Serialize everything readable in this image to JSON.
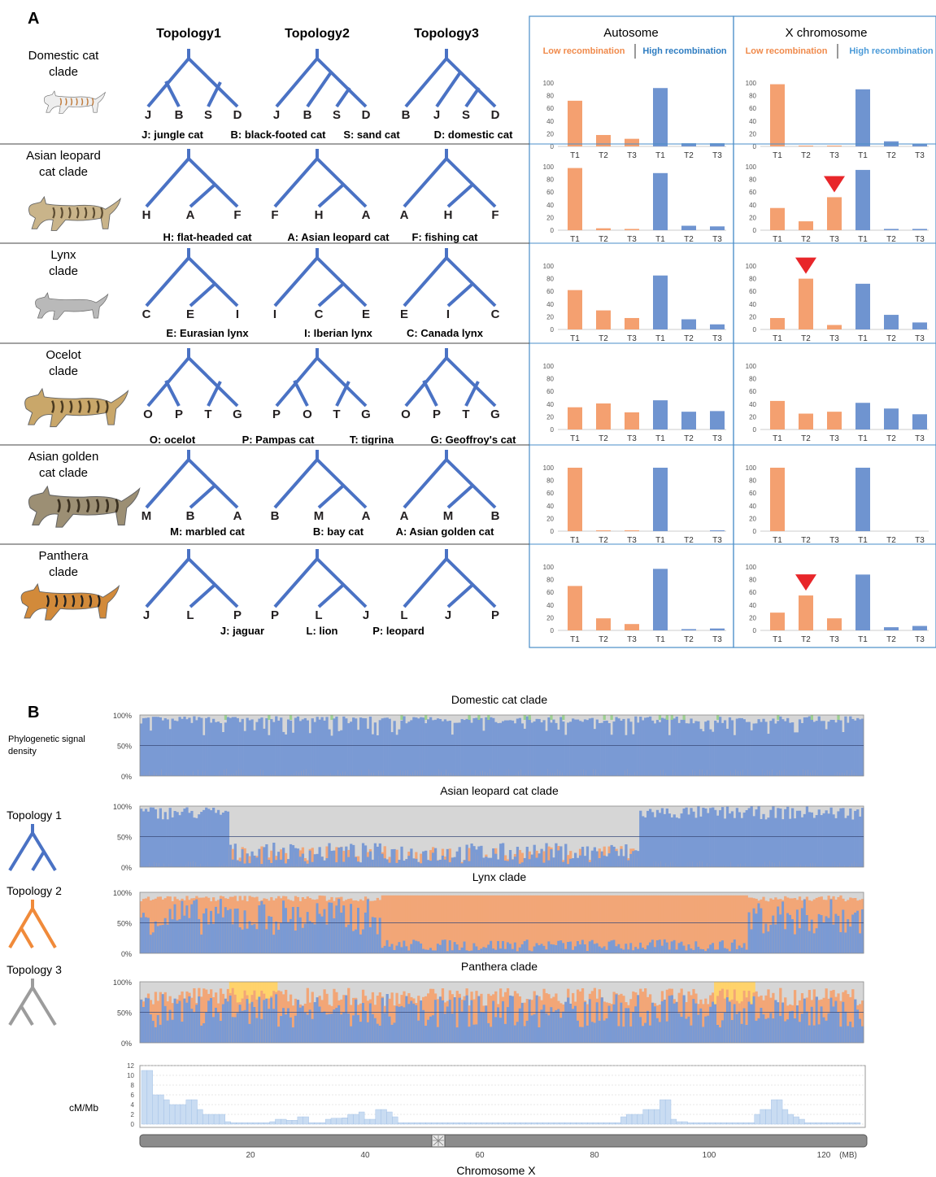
{
  "panelA": {
    "label": "A",
    "topology_headers": [
      "Topology1",
      "Topology2",
      "Topology3"
    ],
    "autosome_title": "Autosome",
    "x_title": "X chromosome",
    "low_label": "Low recombination",
    "high_label": "High recombination",
    "y_ticks": [
      "100",
      "80",
      "60",
      "40",
      "20",
      "0"
    ],
    "x_ticks": [
      "T1",
      "T2",
      "T3",
      "T1",
      "T2",
      "T3"
    ],
    "colors": {
      "low": "#f4a070",
      "high": "#6f94d0",
      "tree": "#4a72c4",
      "marker": "#e8262a",
      "frame": "#4a8ec9",
      "low_text": "#f08a4b",
      "high_text": "#2d7cc1"
    },
    "clades": [
      {
        "name_lines": [
          "Domestic cat",
          "clade"
        ],
        "leaves": [
          [
            "J",
            "B",
            "S",
            "D"
          ],
          [
            "J",
            "B",
            "S",
            "D"
          ],
          [
            "B",
            "J",
            "S",
            "D"
          ]
        ],
        "legend": [
          "J: jungle cat",
          "B: black-footed cat",
          "S: sand cat",
          "D: domestic cat"
        ],
        "auto": [
          72,
          18,
          12,
          92,
          5,
          5
        ],
        "xchr": [
          98,
          1,
          1,
          90,
          8,
          4
        ],
        "marker": null
      },
      {
        "name_lines": [
          "Asian leopard",
          "cat clade"
        ],
        "leaves": [
          [
            "H",
            "A",
            "F"
          ],
          [
            "F",
            "H",
            "A"
          ],
          [
            "A",
            "H",
            "F"
          ]
        ],
        "legend": [
          "H: flat-headed cat",
          "A: Asian leopard cat",
          "F: fishing cat"
        ],
        "auto": [
          98,
          3,
          2,
          90,
          7,
          6
        ],
        "xchr": [
          35,
          14,
          52,
          95,
          2,
          2
        ],
        "marker": 2
      },
      {
        "name_lines": [
          "Lynx",
          "clade"
        ],
        "leaves": [
          [
            "C",
            "E",
            "I"
          ],
          [
            "I",
            "C",
            "E"
          ],
          [
            "E",
            "I",
            "C"
          ]
        ],
        "legend": [
          "E: Eurasian lynx",
          "I: Iberian lynx",
          "C: Canada lynx"
        ],
        "auto": [
          62,
          30,
          18,
          85,
          16,
          8
        ],
        "xchr": [
          18,
          80,
          7,
          72,
          23,
          11
        ],
        "marker": 1
      },
      {
        "name_lines": [
          "Ocelot",
          "clade"
        ],
        "leaves": [
          [
            "O",
            "P",
            "T",
            "G"
          ],
          [
            "P",
            "O",
            "T",
            "G"
          ],
          [
            "O",
            "P",
            "T",
            "G"
          ]
        ],
        "legend": [
          "O: ocelot",
          "P: Pampas cat",
          "T: tigrina",
          "G: Geoffroy's cat"
        ],
        "auto": [
          35,
          41,
          27,
          46,
          28,
          29
        ],
        "xchr": [
          45,
          25,
          28,
          42,
          33,
          24
        ],
        "marker": null
      },
      {
        "name_lines": [
          "Asian golden",
          "cat clade"
        ],
        "leaves": [
          [
            "M",
            "B",
            "A"
          ],
          [
            "B",
            "M",
            "A"
          ],
          [
            "A",
            "M",
            "B"
          ]
        ],
        "legend": [
          "M: marbled cat",
          "B: bay cat",
          "A: Asian golden cat"
        ],
        "auto": [
          100,
          1,
          1,
          100,
          0,
          1
        ],
        "xchr": [
          100,
          0,
          0,
          100,
          0,
          0
        ],
        "marker": null
      },
      {
        "name_lines": [
          "Panthera",
          "clade"
        ],
        "leaves": [
          [
            "J",
            "L",
            "P"
          ],
          [
            "P",
            "L",
            "J"
          ],
          [
            "L",
            "J",
            "P"
          ]
        ],
        "legend": [
          "J: jaguar",
          "L: lion",
          "P: leopard"
        ],
        "auto": [
          70,
          19,
          10,
          97,
          2,
          3
        ],
        "xchr": [
          28,
          55,
          19,
          88,
          5,
          7
        ],
        "marker": 1
      }
    ]
  },
  "panelB": {
    "label": "B",
    "ylabel_lines": [
      "Phylogenetic signal",
      "density"
    ],
    "y_ticks": [
      "100%",
      "50%",
      "0%"
    ],
    "tracks": [
      "Domestic cat clade",
      "Asian leopard cat clade",
      "Lynx clade",
      "Panthera clade"
    ],
    "topologies": [
      "Topology 1",
      "Topology 2",
      "Topology 3"
    ],
    "topology_colors": [
      "#4a72c4",
      "#f08a3a",
      "#9c9c9c"
    ],
    "area_colors": {
      "t1": "#7a9ad4",
      "t2": "#f2a677",
      "t3": "#d6d6d6",
      "t4": "#ffd36b",
      "t5": "#9ccf8f"
    },
    "cm_label": "cM/Mb",
    "cm_ticks": [
      "12",
      "10",
      "8",
      "6",
      "4",
      "2",
      "0"
    ],
    "cm_profile": [
      11,
      11,
      6,
      6,
      5,
      4,
      4,
      4,
      5,
      5,
      3,
      2,
      2,
      2,
      2,
      0.5,
      0.3,
      0.3,
      0.3,
      0.3,
      0.3,
      0.3,
      0.3,
      0.5,
      1,
      1,
      0.8,
      0.8,
      1.5,
      1.5,
      0.3,
      0.3,
      0.3,
      1,
      1.2,
      1.2,
      1.3,
      2,
      2,
      2.5,
      1,
      1,
      3,
      3,
      2.5,
      1.5,
      0.3,
      0.3,
      0.3,
      0.3,
      0.3,
      0.3,
      0.3,
      0.3,
      0.3,
      0.3,
      0.3,
      0.3,
      0.3,
      0.3,
      0.3,
      0.3,
      0.3,
      0.3,
      0.3,
      0.3,
      0.3,
      0.3,
      0.3,
      0.3,
      0.3,
      0.3,
      0.3,
      0.3,
      0.3,
      0.3,
      0.3,
      0.3,
      0.3,
      0.3,
      0.3,
      0.3,
      0.3,
      0.3,
      0.3,
      0.3,
      1.5,
      2,
      2,
      2,
      3,
      3,
      3,
      5,
      5,
      1,
      0.5,
      0.5,
      0.3,
      0.3,
      0.3,
      0.3,
      0.3,
      0.3,
      0.3,
      0.3,
      0.3,
      0.3,
      0.3,
      0.3,
      2,
      3,
      3,
      5,
      5,
      3,
      2,
      1.5,
      1,
      0.3,
      0.3,
      0.3,
      0.3,
      0.3,
      0.3,
      0.3,
      0.3,
      0.3,
      0.3
    ],
    "chr_ticks": [
      "20",
      "40",
      "60",
      "80",
      "100",
      "120"
    ],
    "chr_unit": "(MB)",
    "chr_label": "Chromosome X"
  }
}
